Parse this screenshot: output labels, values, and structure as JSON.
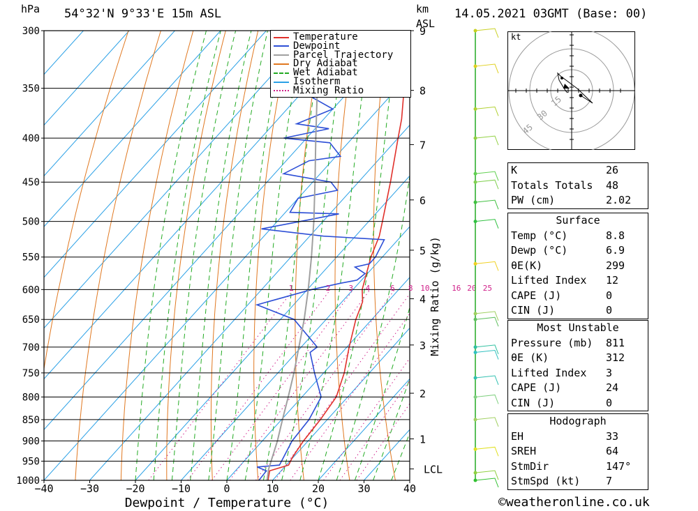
{
  "header": {
    "pressure_unit": "hPa",
    "location": "54°32'N 9°33'E 15m ASL",
    "km_label": "km",
    "asl_label": "ASL",
    "datetime": "14.05.2021 03GMT (Base: 00)"
  },
  "legend": {
    "items": [
      {
        "label": "Temperature",
        "color": "#e0302a",
        "style": "solid"
      },
      {
        "label": "Dewpoint",
        "color": "#2d4fd6",
        "style": "solid"
      },
      {
        "label": "Parcel Trajectory",
        "color": "#a0a0a0",
        "style": "solid"
      },
      {
        "label": "Dry Adiabat",
        "color": "#e07820",
        "style": "solid"
      },
      {
        "label": "Wet Adiabat",
        "color": "#22aa22",
        "style": "dashed"
      },
      {
        "label": "Isotherm",
        "color": "#2aa0e6",
        "style": "solid"
      },
      {
        "label": "Mixing Ratio",
        "color": "#d0208a",
        "style": "dotted"
      }
    ]
  },
  "chart_data": {
    "type": "line",
    "title": "54°32'N 9°33'E 15m ASL",
    "xlabel": "Dewpoint / Temperature (°C)",
    "ylabel": "hPa",
    "y2label": "Mixing Ratio (g/kg)",
    "x_ticks": [
      -40,
      -30,
      -20,
      -10,
      0,
      10,
      20,
      30,
      40
    ],
    "xlim": [
      -40,
      40
    ],
    "y_ticks": [
      300,
      350,
      400,
      450,
      500,
      550,
      600,
      650,
      700,
      750,
      800,
      850,
      900,
      950,
      1000
    ],
    "ylim": [
      1000,
      300
    ],
    "y_scale": "log",
    "km_ticks": [
      {
        "km": "9",
        "p": 300
      },
      {
        "km": "8",
        "p": 352
      },
      {
        "km": "7",
        "p": 407
      },
      {
        "km": "6",
        "p": 472
      },
      {
        "km": "5",
        "p": 540
      },
      {
        "km": "4",
        "p": 615
      },
      {
        "km": "3",
        "p": 696
      },
      {
        "km": "2",
        "p": 792
      },
      {
        "km": "1",
        "p": 895
      },
      {
        "km": "LCL",
        "p": 970
      }
    ],
    "mixing_ratio_labels": [
      "1",
      "2",
      "3",
      "4",
      "6",
      "8",
      "10",
      "16",
      "20",
      "25"
    ],
    "series": [
      {
        "name": "Temperature",
        "color": "#e0302a",
        "points": [
          [
            1000,
            9.0
          ],
          [
            975,
            7.5
          ],
          [
            960,
            10.5
          ],
          [
            940,
            9.8
          ],
          [
            900,
            9.0
          ],
          [
            850,
            8.5
          ],
          [
            800,
            7.5
          ],
          [
            750,
            4.5
          ],
          [
            700,
            0.5
          ],
          [
            650,
            -3.5
          ],
          [
            620,
            -5.5
          ],
          [
            600,
            -8.0
          ],
          [
            550,
            -12.5
          ],
          [
            520,
            -14.8
          ],
          [
            500,
            -17.0
          ],
          [
            450,
            -23.0
          ],
          [
            400,
            -30.0
          ],
          [
            380,
            -33.0
          ],
          [
            350,
            -38.5
          ],
          [
            320,
            -44.5
          ],
          [
            310,
            -48.0
          ],
          [
            300,
            -49.5
          ]
        ]
      },
      {
        "name": "Dewpoint",
        "color": "#2d4fd6",
        "points": [
          [
            1000,
            7.0
          ],
          [
            975,
            6.8
          ],
          [
            965,
            4.0
          ],
          [
            960,
            8.5
          ],
          [
            900,
            6.5
          ],
          [
            850,
            6.0
          ],
          [
            800,
            4.2
          ],
          [
            750,
            -2.0
          ],
          [
            710,
            -7.0
          ],
          [
            700,
            -6.5
          ],
          [
            650,
            -17.0
          ],
          [
            625,
            -28.0
          ],
          [
            600,
            -19.0
          ],
          [
            590,
            -14.0
          ],
          [
            585,
            -11.0
          ],
          [
            575,
            -10.5
          ],
          [
            565,
            -14.0
          ],
          [
            560,
            -11.5
          ],
          [
            550,
            -11.5
          ],
          [
            525,
            -13.0
          ],
          [
            520,
            -27.0
          ],
          [
            510,
            -42.0
          ],
          [
            500,
            -35.0
          ],
          [
            490,
            -28.0
          ],
          [
            488,
            -39.0
          ],
          [
            470,
            -40.0
          ],
          [
            460,
            -33.0
          ],
          [
            450,
            -36.0
          ],
          [
            440,
            -48.0
          ],
          [
            425,
            -45.0
          ],
          [
            420,
            -39.0
          ],
          [
            405,
            -44.0
          ],
          [
            400,
            -55.0
          ],
          [
            390,
            -47.0
          ],
          [
            385,
            -55.0
          ],
          [
            370,
            -50.0
          ],
          [
            360,
            -56.0
          ],
          [
            350,
            -62.0
          ],
          [
            330,
            -64.0
          ],
          [
            320,
            -60.0
          ],
          [
            310,
            -67.0
          ],
          [
            300,
            -65.0
          ]
        ]
      },
      {
        "name": "Parcel Trajectory",
        "color": "#a0a0a0",
        "points": [
          [
            1000,
            8.8
          ],
          [
            970,
            6.9
          ],
          [
            900,
            3.3
          ],
          [
            850,
            0.2
          ],
          [
            800,
            -3.0
          ],
          [
            750,
            -6.5
          ],
          [
            700,
            -10.5
          ],
          [
            650,
            -14.8
          ],
          [
            600,
            -19.8
          ],
          [
            550,
            -25.5
          ],
          [
            500,
            -32.0
          ],
          [
            450,
            -39.5
          ],
          [
            400,
            -48.0
          ],
          [
            350,
            -57.5
          ],
          [
            300,
            -68.0
          ]
        ]
      }
    ]
  },
  "indices": {
    "top": [
      {
        "label": "K",
        "value": "26"
      },
      {
        "label": "Totals Totals",
        "value": "48"
      },
      {
        "label": "PW (cm)",
        "value": "2.02"
      }
    ],
    "surface_title": "Surface",
    "surface": [
      {
        "label": "Temp (°C)",
        "value": "8.8"
      },
      {
        "label": "Dewp (°C)",
        "value": "6.9"
      },
      {
        "label": "θE(K)",
        "value": "299"
      },
      {
        "label": "Lifted Index",
        "value": "12"
      },
      {
        "label": "CAPE (J)",
        "value": "0"
      },
      {
        "label": "CIN (J)",
        "value": "0"
      }
    ],
    "mu_title": "Most Unstable",
    "mu": [
      {
        "label": "Pressure (mb)",
        "value": "811"
      },
      {
        "label": "θE (K)",
        "value": "312"
      },
      {
        "label": "Lifted Index",
        "value": "3"
      },
      {
        "label": "CAPE (J)",
        "value": "24"
      },
      {
        "label": "CIN (J)",
        "value": "0"
      }
    ],
    "hodo_title": "Hodograph",
    "hodo": [
      {
        "label": "EH",
        "value": "33"
      },
      {
        "label": "SREH",
        "value": "64"
      },
      {
        "label": "StmDir",
        "value": "147°"
      },
      {
        "label": "StmSpd (kt)",
        "value": "7"
      }
    ]
  },
  "hodograph": {
    "unit": "kt",
    "rings": [
      "15",
      "30",
      "45"
    ]
  },
  "credit": "©weatheronline.co.uk"
}
